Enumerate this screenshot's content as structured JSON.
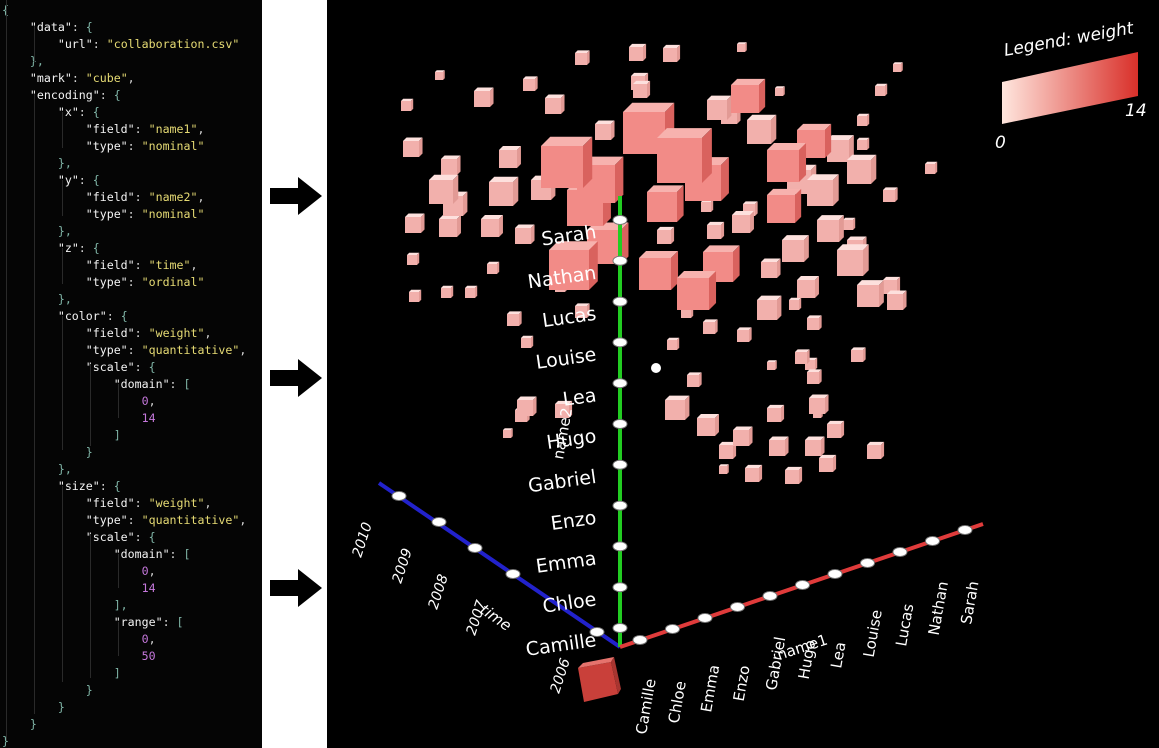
{
  "spec": {
    "data_key": "data",
    "url_key": "url",
    "url": "collaboration.csv",
    "mark_key": "mark",
    "mark": "cube",
    "encoding_key": "encoding",
    "x_key": "x",
    "x_field": "name1",
    "x_type": "nominal",
    "y_key": "y",
    "y_field": "name2",
    "y_type": "nominal",
    "z_key": "z",
    "z_field": "time",
    "z_type": "ordinal",
    "color_key": "color",
    "color_field": "weight",
    "color_type": "quantitative",
    "color_domain_min": "0",
    "color_domain_max": "14",
    "size_key": "size",
    "size_field": "weight",
    "size_type": "quantitative",
    "size_domain_min": "0",
    "size_domain_max": "14",
    "size_range_min": "0",
    "size_range_max": "50",
    "field_key": "field",
    "type_key": "type",
    "scale_key": "scale",
    "domain_key": "domain",
    "range_key": "range"
  },
  "viewer": {
    "legend": {
      "title": "Legend: weight",
      "min": "0",
      "max": "14",
      "color_low": "#ffe6de",
      "color_high": "#d9302a"
    },
    "x_axis": {
      "title": "name1",
      "color": "#e03b3b",
      "labels": [
        "Camille",
        "Chloe",
        "Emma",
        "Enzo",
        "Gabriel",
        "Hugo",
        "Lea",
        "Louise",
        "Lucas",
        "Nathan",
        "Sarah"
      ]
    },
    "y_axis": {
      "title": "name2",
      "color": "#22cc22",
      "labels": [
        "Camille",
        "Chloe",
        "Emma",
        "Enzo",
        "Gabriel",
        "Hugo",
        "Lea",
        "Louise",
        "Lucas",
        "Nathan",
        "Sarah"
      ]
    },
    "z_axis": {
      "title": "time",
      "color": "#2222cc",
      "labels": [
        "2006",
        "2007",
        "2008",
        "2009",
        "2010"
      ]
    },
    "cube_color": "#f2b0ac"
  },
  "arrows": [
    {
      "icon": "right-arrow-icon"
    },
    {
      "icon": "right-arrow-icon"
    },
    {
      "icon": "right-arrow-icon"
    }
  ]
}
